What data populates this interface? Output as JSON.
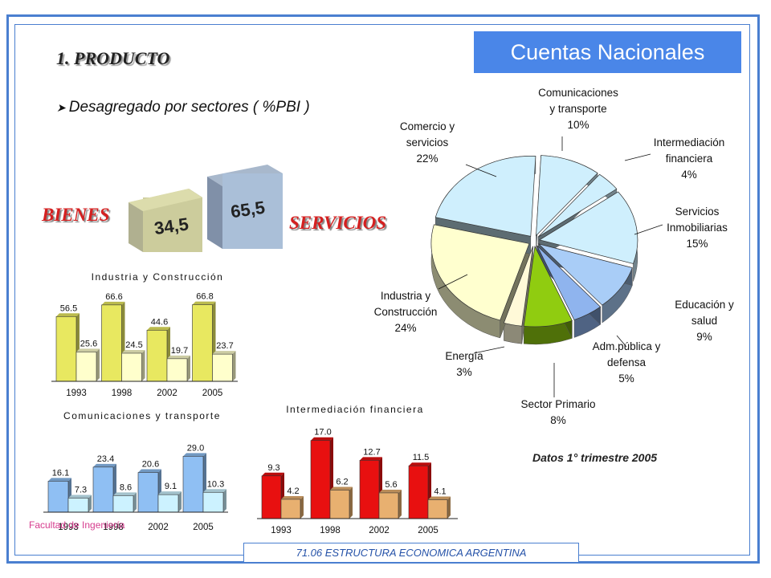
{
  "header": {
    "title": "Cuentas Nacionales",
    "section": "1. PRODUCTO",
    "subtitle": "Desagregado por sectores ( %PBI )",
    "bullet_icon": "arrow-bullet-icon"
  },
  "summary": {
    "bienes_label": "BIENES",
    "servicios_label": "SERVICIOS",
    "bienes_value": "34,5",
    "servicios_value": "65,5"
  },
  "footer": {
    "course": "71.06 ESTRUCTURA ECONOMICA ARGENTINA",
    "faculty": "Facultad de Ingeniería",
    "date_note": "Datos 1° trimestre 2005"
  },
  "colors": {
    "frame": "#4a7fd0",
    "title_bg": "#4a86e8",
    "accent_red": "#d42020"
  },
  "chart_data": [
    {
      "id": "pie",
      "type": "pie",
      "title": "",
      "slices": [
        {
          "label": [
            "Comunicaciones",
            "y transporte",
            "10%"
          ],
          "value": 10,
          "color": "#cfeffd"
        },
        {
          "label": [
            "Intermediación",
            "financiera",
            "4%"
          ],
          "value": 4,
          "color": "#cfeffd"
        },
        {
          "label": [
            "Servicios",
            "Inmobiliarias",
            "15%"
          ],
          "value": 15,
          "color": "#cfeffd"
        },
        {
          "label": [
            "Educación y",
            "salud",
            "9%"
          ],
          "value": 9,
          "color": "#a9cdf7"
        },
        {
          "label": [
            "Adm.pública y",
            "defensa",
            "5%"
          ],
          "value": 5,
          "color": "#8fb4ee"
        },
        {
          "label": [
            "Sector Primario",
            "8%"
          ],
          "value": 8,
          "color": "#90cc10"
        },
        {
          "label": [
            "Energía",
            "3%"
          ],
          "value": 3,
          "color": "#fff9d8"
        },
        {
          "label": [
            "Industria y",
            "Construcción",
            "24%"
          ],
          "value": 24,
          "color": "#ffffcf"
        },
        {
          "label": [
            "Comercio y",
            "servicios",
            "22%"
          ],
          "value": 22,
          "color": "#cfeffd"
        }
      ]
    },
    {
      "id": "industria",
      "type": "bar",
      "title": "Industria y Construcción",
      "categories": [
        "1993",
        "1998",
        "2002",
        "2005"
      ],
      "series": [
        {
          "values": [
            56.5,
            66.6,
            44.6,
            66.8
          ],
          "labels": [
            "56.5",
            "66.6",
            "44.6",
            "66.8"
          ],
          "color": "#e8e860"
        },
        {
          "values": [
            25.6,
            24.5,
            19.7,
            23.7
          ],
          "labels": [
            "25.6",
            "24.5",
            "19.7",
            "23.7"
          ],
          "color": "#ffffcc"
        }
      ],
      "ylim": [
        0,
        70
      ]
    },
    {
      "id": "comunicaciones",
      "type": "bar",
      "title": "Comunicaciones y transporte",
      "categories": [
        "1993",
        "1998",
        "2002",
        "2005"
      ],
      "series": [
        {
          "values": [
            16.1,
            23.4,
            20.6,
            29.0
          ],
          "labels": [
            "16.1",
            "23.4",
            "20.6",
            "29.0"
          ],
          "color": "#8fbff3"
        },
        {
          "values": [
            7.3,
            8.6,
            9.1,
            10.3
          ],
          "labels": [
            "7.3",
            "8.6",
            "9.1",
            "10.3"
          ],
          "color": "#ccf2ff"
        }
      ],
      "ylim": [
        0,
        30
      ]
    },
    {
      "id": "intermediacion",
      "type": "bar",
      "title": "Intermediación financiera",
      "categories": [
        "1993",
        "1998",
        "2002",
        "2005"
      ],
      "series": [
        {
          "values": [
            9.3,
            17.0,
            12.7,
            11.5
          ],
          "labels": [
            "9.3",
            "17.0",
            "12.7",
            "11.5"
          ],
          "color": "#e81010"
        },
        {
          "values": [
            4.2,
            6.2,
            5.6,
            4.1
          ],
          "labels": [
            "4.2",
            "6.2",
            "5.6",
            "4.1"
          ],
          "color": "#e8b070"
        }
      ],
      "ylim": [
        0,
        18
      ]
    }
  ]
}
